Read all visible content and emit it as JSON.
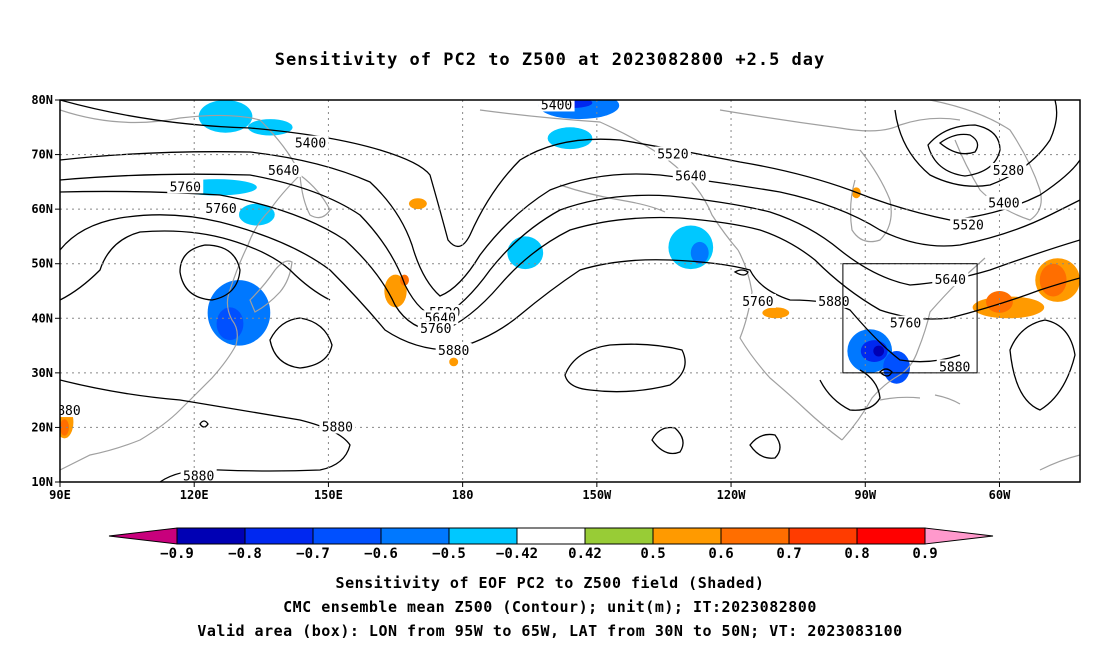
{
  "title": "Sensitivity of PC2 to Z500 at 2023082800 +2.5 day",
  "map": {
    "lat_labels": [
      "80N",
      "70N",
      "60N",
      "50N",
      "40N",
      "30N",
      "20N",
      "10N"
    ],
    "lon_labels": [
      "90E",
      "120E",
      "150E",
      "180",
      "150W",
      "120W",
      "90W",
      "60W"
    ],
    "lat_values": [
      80,
      70,
      60,
      50,
      40,
      30,
      20,
      10
    ],
    "lon_values": [
      90,
      120,
      150,
      180,
      210,
      240,
      270,
      300
    ],
    "lon_range": [
      90,
      318
    ],
    "lat_range": [
      10,
      80
    ],
    "valid_box": {
      "lon": [
        265,
        295
      ],
      "lat": [
        30,
        50
      ]
    },
    "contour_labels": [
      {
        "text": "5400",
        "lon": 201,
        "lat": 79
      },
      {
        "text": "5400",
        "lon": 146,
        "lat": 72
      },
      {
        "text": "5520",
        "lon": 227,
        "lat": 70
      },
      {
        "text": "5640",
        "lon": 140,
        "lat": 67
      },
      {
        "text": "5640",
        "lon": 231,
        "lat": 66
      },
      {
        "text": "5760",
        "lon": 118,
        "lat": 64
      },
      {
        "text": "5760",
        "lon": 126,
        "lat": 60
      },
      {
        "text": "5280",
        "lon": 302,
        "lat": 67
      },
      {
        "text": "5400",
        "lon": 301,
        "lat": 61
      },
      {
        "text": "5520",
        "lon": 293,
        "lat": 57
      },
      {
        "text": "5520",
        "lon": 176,
        "lat": 41
      },
      {
        "text": "5640",
        "lon": 175,
        "lat": 40
      },
      {
        "text": "5640",
        "lon": 289,
        "lat": 47
      },
      {
        "text": "5760",
        "lon": 174,
        "lat": 38
      },
      {
        "text": "5760",
        "lon": 246,
        "lat": 43
      },
      {
        "text": "5760",
        "lon": 279,
        "lat": 39
      },
      {
        "text": "5880",
        "lon": 178,
        "lat": 34
      },
      {
        "text": "5880",
        "lon": 152,
        "lat": 20
      },
      {
        "text": "5880",
        "lon": 263,
        "lat": 43
      },
      {
        "text": "5880",
        "lon": 290,
        "lat": 31
      },
      {
        "text": "5880",
        "lon": 121,
        "lat": 11
      },
      {
        "text": "880",
        "lon": 92,
        "lat": 23
      }
    ],
    "shaded_regions": [
      {
        "value": -0.5,
        "lon": 125,
        "lat": 64,
        "rx": 9,
        "ry": 1.5
      },
      {
        "value": -0.5,
        "lon": 134,
        "lat": 59,
        "rx": 4,
        "ry": 2
      },
      {
        "value": -0.6,
        "lon": 130,
        "lat": 41,
        "rx": 7,
        "ry": 6
      },
      {
        "value": -0.7,
        "lon": 128,
        "lat": 39,
        "rx": 3,
        "ry": 3
      },
      {
        "value": -0.5,
        "lon": 127,
        "lat": 77,
        "rx": 6,
        "ry": 3
      },
      {
        "value": -0.5,
        "lon": 137,
        "lat": 75,
        "rx": 5,
        "ry": 1.5
      },
      {
        "value": -0.6,
        "lon": 206,
        "lat": 79,
        "rx": 9,
        "ry": 2.5
      },
      {
        "value": -0.8,
        "lon": 204,
        "lat": 79.5,
        "rx": 5,
        "ry": 1
      },
      {
        "value": -0.5,
        "lon": 204,
        "lat": 73,
        "rx": 5,
        "ry": 2
      },
      {
        "value": -0.5,
        "lon": 194,
        "lat": 52,
        "rx": 4,
        "ry": 3
      },
      {
        "value": -0.5,
        "lon": 231,
        "lat": 53,
        "rx": 5,
        "ry": 4
      },
      {
        "value": -0.6,
        "lon": 233,
        "lat": 52,
        "rx": 2,
        "ry": 2
      },
      {
        "value": -0.6,
        "lon": 271,
        "lat": 34,
        "rx": 5,
        "ry": 4
      },
      {
        "value": -0.8,
        "lon": 272,
        "lat": 34,
        "rx": 3,
        "ry": 2
      },
      {
        "value": -0.9,
        "lon": 273,
        "lat": 34,
        "rx": 1.2,
        "ry": 1
      },
      {
        "value": -0.7,
        "lon": 277,
        "lat": 31,
        "rx": 3,
        "ry": 3
      },
      {
        "value": 0.5,
        "lon": 165,
        "lat": 45,
        "rx": 2.5,
        "ry": 3
      },
      {
        "value": 0.6,
        "lon": 167,
        "lat": 47,
        "rx": 1,
        "ry": 1
      },
      {
        "value": 0.5,
        "lon": 170,
        "lat": 61,
        "rx": 2,
        "ry": 1
      },
      {
        "value": 0.5,
        "lon": 250,
        "lat": 41,
        "rx": 3,
        "ry": 1
      },
      {
        "value": 0.5,
        "lon": 302,
        "lat": 42,
        "rx": 8,
        "ry": 2
      },
      {
        "value": 0.6,
        "lon": 300,
        "lat": 43,
        "rx": 3,
        "ry": 2
      },
      {
        "value": 0.5,
        "lon": 313,
        "lat": 47,
        "rx": 5,
        "ry": 4
      },
      {
        "value": 0.6,
        "lon": 312,
        "lat": 47,
        "rx": 3,
        "ry": 3
      },
      {
        "value": 0.5,
        "lon": 91,
        "lat": 21,
        "rx": 2,
        "ry": 3
      },
      {
        "value": 0.6,
        "lon": 91,
        "lat": 20,
        "rx": 1,
        "ry": 1.5
      },
      {
        "value": 0.5,
        "lon": 178,
        "lat": 32,
        "rx": 1,
        "ry": 0.8
      },
      {
        "value": 0.5,
        "lon": 268,
        "lat": 63,
        "rx": 1,
        "ry": 1
      }
    ]
  },
  "colorbar": {
    "labels": [
      "-0.9",
      "-0.8",
      "-0.7",
      "-0.6",
      "-0.5",
      "-0.42",
      "0.42",
      "0.5",
      "0.6",
      "0.7",
      "0.8",
      "0.9"
    ],
    "colors": [
      "#0000b4",
      "#0028f0",
      "#0050ff",
      "#0078ff",
      "#00c8ff",
      "#ffffff",
      "#98cc36",
      "#ff9a00",
      "#ff6e00",
      "#ff3c00",
      "#ff0000"
    ],
    "under_color": "#c8007c",
    "over_color": "#ff99cc"
  },
  "footer": {
    "line1": "Sensitivity of EOF PC2 to Z500 field (Shaded)",
    "line2": "CMC ensemble mean Z500 (Contour); unit(m); IT:2023082800",
    "line3": "Valid area (box): LON from 95W to 65W, LAT from 30N to 50N; VT: 2023083100"
  }
}
